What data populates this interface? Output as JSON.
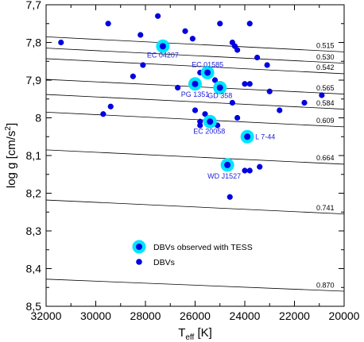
{
  "chart_data": {
    "type": "scatter",
    "xlabel": "T",
    "xlabel_sub": "eff",
    "xlabel_unit": " [K]",
    "ylabel": "log g [cm/s",
    "ylabel_sup": "2",
    "ylabel_end": "]",
    "xlim": [
      32000,
      20000
    ],
    "ylim": [
      7.7,
      8.5
    ],
    "y_inverted": true,
    "xticks": [
      32000,
      30000,
      28000,
      26000,
      24000,
      22000,
      20000
    ],
    "xtick_labels": [
      "32000",
      "30000",
      "28000",
      "26000",
      "24000",
      "22000",
      "20000"
    ],
    "yticks": [
      7.7,
      7.8,
      7.9,
      8.0,
      8.1,
      8.2,
      8.3,
      8.4,
      8.5
    ],
    "ytick_labels": [
      "7,7",
      "7,8",
      "7,9",
      "8",
      "8,1",
      "8,2",
      "8,3",
      "8,4",
      "8,5"
    ],
    "mass_tracks": [
      {
        "label": "0.515",
        "y32000": 7.785,
        "y20000": 7.825
      },
      {
        "label": "0.530",
        "y32000": 7.815,
        "y20000": 7.855
      },
      {
        "label": "0.542",
        "y32000": 7.843,
        "y20000": 7.883
      },
      {
        "label": "0.565",
        "y32000": 7.898,
        "y20000": 7.937
      },
      {
        "label": "0.584",
        "y32000": 7.938,
        "y20000": 7.977
      },
      {
        "label": "0.609",
        "y32000": 7.985,
        "y20000": 8.024
      },
      {
        "label": "0.664",
        "y32000": 8.085,
        "y20000": 8.123
      },
      {
        "label": "0.741",
        "y32000": 8.218,
        "y20000": 8.255
      },
      {
        "label": "0.870",
        "y32000": 8.428,
        "y20000": 8.46
      }
    ],
    "series": [
      {
        "name": "DBVs observed with TESS",
        "color": "#00e5ff",
        "points": [
          {
            "x": 27300,
            "y": 7.81,
            "label": "EC 04207"
          },
          {
            "x": 25500,
            "y": 7.88,
            "label": "EC 01585"
          },
          {
            "x": 26000,
            "y": 7.91,
            "label": "PG 1351"
          },
          {
            "x": 25000,
            "y": 7.92,
            "label": "GD 358"
          },
          {
            "x": 25400,
            "y": 8.01,
            "label": "EC 20058"
          },
          {
            "x": 23900,
            "y": 8.05,
            "label": "L 7-44"
          },
          {
            "x": 24700,
            "y": 8.125,
            "label": "WD J1527"
          }
        ]
      },
      {
        "name": "DBVs",
        "color": "#0000e0",
        "points": [
          {
            "x": 31400,
            "y": 7.8
          },
          {
            "x": 29500,
            "y": 7.75
          },
          {
            "x": 27500,
            "y": 7.73
          },
          {
            "x": 28200,
            "y": 7.78
          },
          {
            "x": 26400,
            "y": 7.77
          },
          {
            "x": 26100,
            "y": 7.79
          },
          {
            "x": 25000,
            "y": 7.75
          },
          {
            "x": 23800,
            "y": 7.75
          },
          {
            "x": 24500,
            "y": 7.8
          },
          {
            "x": 24400,
            "y": 7.81
          },
          {
            "x": 24300,
            "y": 7.82
          },
          {
            "x": 23500,
            "y": 7.84
          },
          {
            "x": 23100,
            "y": 7.86
          },
          {
            "x": 28100,
            "y": 7.86
          },
          {
            "x": 25800,
            "y": 7.88
          },
          {
            "x": 28500,
            "y": 7.89
          },
          {
            "x": 25200,
            "y": 7.9
          },
          {
            "x": 26700,
            "y": 7.92
          },
          {
            "x": 24000,
            "y": 7.91
          },
          {
            "x": 23800,
            "y": 7.91
          },
          {
            "x": 23000,
            "y": 7.93
          },
          {
            "x": 29400,
            "y": 7.97
          },
          {
            "x": 29700,
            "y": 7.99
          },
          {
            "x": 26000,
            "y": 7.98
          },
          {
            "x": 25600,
            "y": 7.99
          },
          {
            "x": 24500,
            "y": 7.96
          },
          {
            "x": 22600,
            "y": 7.98
          },
          {
            "x": 21600,
            "y": 7.96
          },
          {
            "x": 20900,
            "y": 7.94
          },
          {
            "x": 25800,
            "y": 8.01
          },
          {
            "x": 25800,
            "y": 8.02
          },
          {
            "x": 25100,
            "y": 8.02
          },
          {
            "x": 24300,
            "y": 8.0
          },
          {
            "x": 23800,
            "y": 8.14
          },
          {
            "x": 24000,
            "y": 8.14
          },
          {
            "x": 23400,
            "y": 8.13
          },
          {
            "x": 24600,
            "y": 8.21
          }
        ]
      }
    ],
    "legend_position": "lower-center"
  }
}
